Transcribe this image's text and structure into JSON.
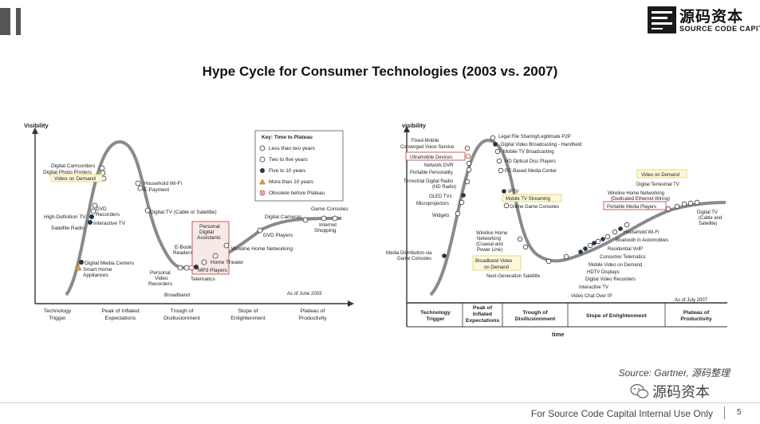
{
  "header": {
    "logo_cn": "源码资本",
    "logo_en": "SOURCE CODE CAPITAL",
    "title": "Hype Cycle for Consumer Technologies (2003 vs. 2007)"
  },
  "left_chart": {
    "y_axis_label": "Visibility",
    "key": {
      "title": "Key: Time to Plateau",
      "items": [
        "Less than two years",
        "Two to five years",
        "Five to 10 years",
        "More than 10 years",
        "Obsolete before Plateau"
      ]
    },
    "phases": [
      [
        "Technology",
        "Trigger"
      ],
      [
        "Peak of Inflated",
        "Expectations"
      ],
      [
        "Trough of",
        "Disillusionment"
      ],
      [
        "Slope of",
        "Enlightenment"
      ],
      [
        "Plateau of",
        "Productivity"
      ]
    ],
    "date": "As of June 2003",
    "labels": {
      "digital_camcorders": "Digital Camcorders",
      "digital_photo_printers": "Digital Photo Printers",
      "video_on_demand": "Video on Demand",
      "household_wifi": "Household Wi-Fi",
      "e_payment": "E-Payment",
      "hdtv": "High-Definition TV",
      "dvd_recorders_1": "DVD",
      "dvd_recorders_2": "Recorders",
      "interactive_tv": "Interactive TV",
      "satellite_radio": "Satellite Radio",
      "digital_tv": "Digital TV (Cable or Satellite)",
      "game_consoles": "Game Consoles",
      "digital_cameras": "Digital Cameras",
      "internet_shopping_1": "Internet",
      "internet_shopping_2": "Shopping",
      "dvd_players": "DVD Players",
      "pda_1": "Personal",
      "pda_2": "Digital",
      "pda_3": "Assistants",
      "home_theater": "Home Theater",
      "mp3_players": "MP3 Players",
      "ebook_1": "E-Book",
      "ebook_2": "Readers",
      "wireline": "Wireline Home Networking",
      "media_centers": "Digital Media Centers",
      "smart_home_1": "Smart Home",
      "smart_home_2": "Appliances",
      "pvr_1": "Personal",
      "pvr_2": "Video",
      "pvr_3": "Recorders",
      "telematics": "Telematics",
      "broadband": "Broadband"
    }
  },
  "right_chart": {
    "y_axis_label": "visibility",
    "x_axis_label": "time",
    "date": "As of July 2007",
    "phases": [
      [
        "Technology",
        "Trigger"
      ],
      [
        "Peak of",
        "Inflated",
        "Expectations"
      ],
      [
        "Trough of",
        "Disillusionment"
      ],
      [
        "Slope of Enlightenment"
      ],
      [
        "Plateau of",
        "Productivity"
      ]
    ],
    "labels": {
      "fixed_mobile_1": "Fixed-Mobile",
      "fixed_mobile_2": "Converged Voice Service",
      "ultramobile": "Ultramobile Devices",
      "network_dvr": "Network DVR",
      "portable_personality": "Portable Personality",
      "tdr_1": "Terrestrial Digital Radio",
      "tdr_2": "(HD Radio)",
      "oled": "OLED TVs",
      "microprojectors": "Microprojectors",
      "widgets": "Widgets",
      "media_dist_1": "Media Distribution via",
      "media_dist_2": "Game Consoles",
      "file_sharing": "Legal File Sharing/Legitimate P2P",
      "dvb_h": "Digital Video Broadcasting - Handheld",
      "mobile_tv_broadcasting": "Mobile TV Broadcasting",
      "hd_optical": "HD Optical Disc Players",
      "pc_media_center": "PC-Based Media Center",
      "iptv": "IPTV",
      "mobile_tv_streaming": "Mobile TV Streaming",
      "online_games": "Online Game Consoles",
      "wireline_1": "Wireline Home",
      "wireline_2": "Networking",
      "wireline_3": "(Coaxial and",
      "wireline_4": "Power Line)",
      "bb_video_1": "Broadband Video",
      "bb_video_2": "on Demand",
      "next_gen_sat": "Next-Generation Satellite",
      "video_on_demand": "Video on Demand",
      "dtt": "Digital Terrestrial TV",
      "whn_1": "Wireline Home Networking",
      "whn_2": "(Dedicated Ethernet Wiring)",
      "pmp": "Portable Media Players",
      "digital_tv_1": "Digital TV",
      "digital_tv_2": "(Cable and",
      "digital_tv_3": "Satellite)",
      "household_wifi": "Household Wi-Fi",
      "bt_autos": "Bluetooth in Automobiles",
      "res_voip": "Residential VoIP",
      "consumer_telematics": "Consumer Telematics",
      "mobile_vod": "Mobile Video on Demand",
      "hdtv_displays": "HDTV Displays",
      "dvr": "Digital Video Recorders",
      "interactive_tv": "Interactive TV",
      "video_chat": "Video Chat Over IP"
    }
  },
  "source": "Source: Gartner, 源码整理",
  "watermark": "源码资本",
  "footer": {
    "text": "For Source Code Capital Internal Use Only",
    "page": "5"
  },
  "colors": {
    "dark_dot": "#1f3550",
    "highlight_red": "#c0504d",
    "highlight_yellow": "#e8d36a"
  }
}
